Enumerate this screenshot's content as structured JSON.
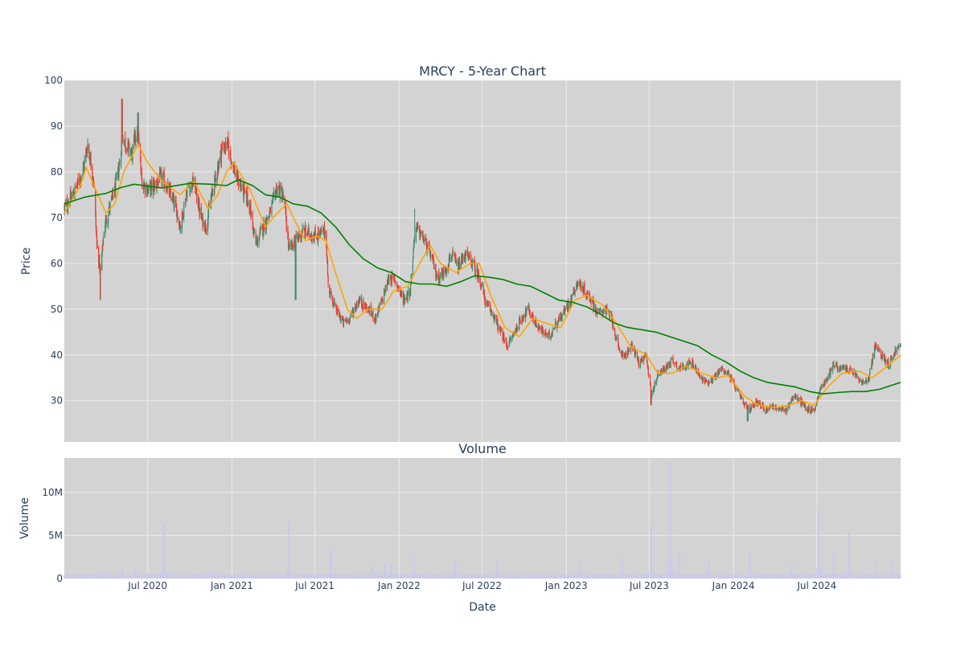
{
  "chart_data": [
    {
      "type": "candlestick",
      "title": "MRCY - 5-Year Chart",
      "ylabel": "Price",
      "xlabel": "",
      "ylim": [
        21,
        100
      ],
      "yticks": [
        30,
        40,
        50,
        60,
        70,
        80,
        90,
        100
      ],
      "xrange": [
        "2020-01-01",
        "2024-12-31"
      ],
      "grid": true,
      "legend": "none",
      "colors": {
        "up": "#3d8b6a",
        "down": "#ef3b2c",
        "ma_short": "#ffa500",
        "ma_long": "#008000",
        "plot_bg": "#d3d3d3",
        "grid": "#ebebeb"
      },
      "close_anchors": [
        [
          "2020-01-01",
          72
        ],
        [
          "2020-01-20",
          75
        ],
        [
          "2020-02-10",
          80
        ],
        [
          "2020-02-21",
          86
        ],
        [
          "2020-03-05",
          78
        ],
        [
          "2020-03-12",
          64
        ],
        [
          "2020-03-20",
          58
        ],
        [
          "2020-03-28",
          68
        ],
        [
          "2020-04-08",
          72
        ],
        [
          "2020-04-20",
          76
        ],
        [
          "2020-05-01",
          82
        ],
        [
          "2020-05-06",
          88
        ],
        [
          "2020-05-15",
          86
        ],
        [
          "2020-05-28",
          84
        ],
        [
          "2020-06-08",
          90
        ],
        [
          "2020-06-18",
          78
        ],
        [
          "2020-07-01",
          76
        ],
        [
          "2020-07-15",
          77
        ],
        [
          "2020-08-01",
          79
        ],
        [
          "2020-08-15",
          76
        ],
        [
          "2020-09-01",
          72
        ],
        [
          "2020-09-10",
          68
        ],
        [
          "2020-09-25",
          76
        ],
        [
          "2020-10-10",
          78
        ],
        [
          "2020-10-25",
          70
        ],
        [
          "2020-11-05",
          68
        ],
        [
          "2020-11-20",
          76
        ],
        [
          "2020-12-10",
          85
        ],
        [
          "2020-12-22",
          86
        ],
        [
          "2021-01-10",
          79
        ],
        [
          "2021-01-25",
          76
        ],
        [
          "2021-02-08",
          73
        ],
        [
          "2021-02-22",
          64
        ],
        [
          "2021-03-10",
          68
        ],
        [
          "2021-03-25",
          71
        ],
        [
          "2021-04-10",
          77
        ],
        [
          "2021-04-25",
          74
        ],
        [
          "2021-05-05",
          63
        ],
        [
          "2021-05-20",
          65
        ],
        [
          "2021-06-05",
          67
        ],
        [
          "2021-07-01",
          66
        ],
        [
          "2021-07-25",
          67
        ],
        [
          "2021-07-30",
          55
        ],
        [
          "2021-08-15",
          50
        ],
        [
          "2021-09-01",
          47
        ],
        [
          "2021-09-15",
          48
        ],
        [
          "2021-10-05",
          52
        ],
        [
          "2021-10-25",
          50
        ],
        [
          "2021-11-10",
          48
        ],
        [
          "2021-11-25",
          52
        ],
        [
          "2021-12-10",
          57
        ],
        [
          "2021-12-25",
          56
        ],
        [
          "2022-01-10",
          52
        ],
        [
          "2022-01-25",
          54
        ],
        [
          "2022-02-05",
          68
        ],
        [
          "2022-02-20",
          66
        ],
        [
          "2022-03-10",
          62
        ],
        [
          "2022-03-25",
          57
        ],
        [
          "2022-04-10",
          58
        ],
        [
          "2022-04-25",
          62
        ],
        [
          "2022-05-10",
          59
        ],
        [
          "2022-05-25",
          62
        ],
        [
          "2022-06-10",
          60
        ],
        [
          "2022-06-25",
          57
        ],
        [
          "2022-07-10",
          51
        ],
        [
          "2022-07-25",
          49
        ],
        [
          "2022-08-10",
          45
        ],
        [
          "2022-08-25",
          42
        ],
        [
          "2022-09-10",
          45
        ],
        [
          "2022-09-25",
          48
        ],
        [
          "2022-10-10",
          50
        ],
        [
          "2022-10-25",
          47
        ],
        [
          "2022-11-10",
          45
        ],
        [
          "2022-11-25",
          44
        ],
        [
          "2022-12-10",
          47
        ],
        [
          "2022-12-25",
          49
        ],
        [
          "2023-01-10",
          52
        ],
        [
          "2023-01-25",
          56
        ],
        [
          "2023-02-10",
          54
        ],
        [
          "2023-02-25",
          52
        ],
        [
          "2023-03-10",
          49
        ],
        [
          "2023-03-25",
          50
        ],
        [
          "2023-04-10",
          48
        ],
        [
          "2023-04-25",
          41
        ],
        [
          "2023-05-10",
          40
        ],
        [
          "2023-05-25",
          42
        ],
        [
          "2023-06-10",
          38
        ],
        [
          "2023-06-25",
          40
        ],
        [
          "2023-07-05",
          31
        ],
        [
          "2023-07-20",
          36
        ],
        [
          "2023-08-05",
          37
        ],
        [
          "2023-08-20",
          39
        ],
        [
          "2023-09-05",
          37
        ],
        [
          "2023-09-20",
          38
        ],
        [
          "2023-10-05",
          38
        ],
        [
          "2023-10-20",
          35
        ],
        [
          "2023-11-05",
          34
        ],
        [
          "2023-11-20",
          35
        ],
        [
          "2023-12-05",
          37
        ],
        [
          "2023-12-20",
          36
        ],
        [
          "2024-01-10",
          32
        ],
        [
          "2024-01-25",
          29
        ],
        [
          "2024-02-05",
          28
        ],
        [
          "2024-02-20",
          30
        ],
        [
          "2024-03-10",
          28
        ],
        [
          "2024-03-25",
          29
        ],
        [
          "2024-04-10",
          28
        ],
        [
          "2024-04-25",
          28
        ],
        [
          "2024-05-10",
          31
        ],
        [
          "2024-05-25",
          30
        ],
        [
          "2024-06-10",
          28
        ],
        [
          "2024-06-25",
          28
        ],
        [
          "2024-07-10",
          33
        ],
        [
          "2024-07-25",
          35
        ],
        [
          "2024-08-05",
          38
        ],
        [
          "2024-08-20",
          37
        ],
        [
          "2024-09-05",
          37
        ],
        [
          "2024-09-20",
          36
        ],
        [
          "2024-10-05",
          34
        ],
        [
          "2024-10-20",
          34
        ],
        [
          "2024-11-05",
          42
        ],
        [
          "2024-11-20",
          40
        ],
        [
          "2024-12-05",
          38
        ],
        [
          "2024-12-20",
          41
        ],
        [
          "2024-12-31",
          42
        ]
      ],
      "ma_short": [
        [
          "2020-01-01",
          71
        ],
        [
          "2020-02-05",
          77
        ],
        [
          "2020-02-18",
          81
        ],
        [
          "2020-03-10",
          76
        ],
        [
          "2020-04-01",
          71
        ],
        [
          "2020-04-20",
          73
        ],
        [
          "2020-05-10",
          80
        ],
        [
          "2020-06-10",
          86
        ],
        [
          "2020-07-01",
          82
        ],
        [
          "2020-08-01",
          78
        ],
        [
          "2020-09-10",
          75
        ],
        [
          "2020-10-10",
          78
        ],
        [
          "2020-11-10",
          72
        ],
        [
          "2020-12-01",
          75
        ],
        [
          "2020-12-20",
          80
        ],
        [
          "2021-01-05",
          82
        ],
        [
          "2021-02-10",
          76
        ],
        [
          "2021-03-15",
          68
        ],
        [
          "2021-04-10",
          71
        ],
        [
          "2021-05-01",
          73
        ],
        [
          "2021-05-20",
          69
        ],
        [
          "2021-06-10",
          65
        ],
        [
          "2021-07-05",
          66
        ],
        [
          "2021-07-25",
          65
        ],
        [
          "2021-08-15",
          58
        ],
        [
          "2021-09-10",
          50
        ],
        [
          "2021-10-01",
          48
        ],
        [
          "2021-10-25",
          50
        ],
        [
          "2021-11-25",
          50
        ],
        [
          "2021-12-20",
          54
        ],
        [
          "2022-01-20",
          55
        ],
        [
          "2022-02-15",
          60
        ],
        [
          "2022-03-10",
          64
        ],
        [
          "2022-04-01",
          60
        ],
        [
          "2022-05-05",
          58
        ],
        [
          "2022-06-05",
          60
        ],
        [
          "2022-06-25",
          60
        ],
        [
          "2022-07-20",
          53
        ],
        [
          "2022-08-20",
          46
        ],
        [
          "2022-09-20",
          44
        ],
        [
          "2022-10-20",
          48
        ],
        [
          "2022-11-15",
          47
        ],
        [
          "2022-12-20",
          46
        ],
        [
          "2023-01-20",
          52
        ],
        [
          "2023-02-15",
          53
        ],
        [
          "2023-03-20",
          51
        ],
        [
          "2023-04-20",
          47
        ],
        [
          "2023-05-20",
          42
        ],
        [
          "2023-06-25",
          40
        ],
        [
          "2023-07-20",
          36
        ],
        [
          "2023-08-20",
          36
        ],
        [
          "2023-09-20",
          37.5
        ],
        [
          "2023-10-25",
          36
        ],
        [
          "2023-11-25",
          35
        ],
        [
          "2023-12-20",
          35.5
        ],
        [
          "2024-01-25",
          31
        ],
        [
          "2024-02-25",
          29
        ],
        [
          "2024-04-01",
          28.5
        ],
        [
          "2024-05-01",
          29
        ],
        [
          "2024-05-30",
          30
        ],
        [
          "2024-06-25",
          29
        ],
        [
          "2024-07-25",
          33
        ],
        [
          "2024-08-25",
          36
        ],
        [
          "2024-10-01",
          36.5
        ],
        [
          "2024-10-30",
          35
        ],
        [
          "2024-11-25",
          37
        ],
        [
          "2024-12-31",
          40
        ]
      ],
      "ma_long": [
        [
          "2020-01-01",
          73
        ],
        [
          "2020-02-15",
          74.5
        ],
        [
          "2020-04-01",
          75.3
        ],
        [
          "2020-05-01",
          76.5
        ],
        [
          "2020-06-01",
          77.3
        ],
        [
          "2020-08-01",
          76.5
        ],
        [
          "2020-10-01",
          77.5
        ],
        [
          "2020-11-15",
          77.3
        ],
        [
          "2020-12-20",
          77
        ],
        [
          "2021-01-15",
          78.3
        ],
        [
          "2021-02-15",
          77
        ],
        [
          "2021-03-15",
          75
        ],
        [
          "2021-04-15",
          74.5
        ],
        [
          "2021-05-15",
          73
        ],
        [
          "2021-06-15",
          72.5
        ],
        [
          "2021-07-15",
          71
        ],
        [
          "2021-08-15",
          68
        ],
        [
          "2021-09-15",
          64
        ],
        [
          "2021-10-15",
          61
        ],
        [
          "2021-11-15",
          59
        ],
        [
          "2021-12-15",
          58
        ],
        [
          "2022-01-15",
          56
        ],
        [
          "2022-02-15",
          55.5
        ],
        [
          "2022-03-15",
          55.5
        ],
        [
          "2022-04-15",
          55
        ],
        [
          "2022-05-15",
          56
        ],
        [
          "2022-06-15",
          57.3
        ],
        [
          "2022-07-15",
          57
        ],
        [
          "2022-08-15",
          56.5
        ],
        [
          "2022-09-15",
          55.5
        ],
        [
          "2022-10-15",
          55
        ],
        [
          "2022-11-15",
          53.5
        ],
        [
          "2022-12-15",
          52
        ],
        [
          "2023-01-15",
          51.5
        ],
        [
          "2023-02-15",
          50.5
        ],
        [
          "2023-03-15",
          49
        ],
        [
          "2023-04-15",
          47
        ],
        [
          "2023-05-15",
          46
        ],
        [
          "2023-06-15",
          45.5
        ],
        [
          "2023-07-15",
          45
        ],
        [
          "2023-08-15",
          44
        ],
        [
          "2023-09-15",
          43
        ],
        [
          "2023-10-15",
          42
        ],
        [
          "2023-11-15",
          40
        ],
        [
          "2023-12-15",
          38.5
        ],
        [
          "2024-01-15",
          36.5
        ],
        [
          "2024-02-15",
          35
        ],
        [
          "2024-03-15",
          34
        ],
        [
          "2024-04-15",
          33.5
        ],
        [
          "2024-05-15",
          33
        ],
        [
          "2024-06-15",
          32
        ],
        [
          "2024-07-15",
          31.5
        ],
        [
          "2024-08-15",
          31.8
        ],
        [
          "2024-09-15",
          32
        ],
        [
          "2024-10-15",
          32
        ],
        [
          "2024-11-15",
          32.5
        ],
        [
          "2024-12-31",
          34
        ]
      ],
      "candle_points": [
        [
          "2020-03-20",
          52
        ],
        [
          "2020-05-06",
          96
        ],
        [
          "2020-06-10",
          93
        ],
        [
          "2021-05-20",
          52
        ],
        [
          "2022-02-05",
          72
        ],
        [
          "2023-07-05",
          29
        ],
        [
          "2024-02-01",
          25.5
        ]
      ]
    },
    {
      "type": "bar",
      "title": "Volume",
      "ylabel": "Volume",
      "xlabel": "Date",
      "ylim": [
        0,
        14000000
      ],
      "yticks": [
        0,
        5000000,
        10000000
      ],
      "ytick_labels": [
        "0",
        "5M",
        "10M"
      ],
      "xticks": [
        "2020-07-01",
        "2021-01-01",
        "2021-07-01",
        "2022-01-01",
        "2022-07-01",
        "2023-01-01",
        "2023-07-01",
        "2024-01-01",
        "2024-07-01"
      ],
      "xtick_labels": [
        "Jul 2020",
        "Jan 2021",
        "Jul 2021",
        "Jan 2022",
        "Jul 2022",
        "Jan 2023",
        "Jul 2023",
        "Jan 2024",
        "Jul 2024"
      ],
      "bar_color": "#c8c8f0",
      "baseline": 450000,
      "spikes": [
        [
          "2020-03-13",
          900000
        ],
        [
          "2020-04-05",
          800000
        ],
        [
          "2020-05-06",
          1100000
        ],
        [
          "2020-06-04",
          1300000
        ],
        [
          "2020-08-05",
          6400000
        ],
        [
          "2020-11-10",
          900000
        ],
        [
          "2021-02-03",
          800000
        ],
        [
          "2021-05-05",
          6500000
        ],
        [
          "2021-08-04",
          3600000
        ],
        [
          "2021-11-03",
          1400000
        ],
        [
          "2021-12-01",
          1800000
        ],
        [
          "2021-12-15",
          1500000
        ],
        [
          "2022-02-05",
          2700000
        ],
        [
          "2022-05-04",
          1900000
        ],
        [
          "2022-08-03",
          2100000
        ],
        [
          "2023-01-31",
          2100000
        ],
        [
          "2023-05-03",
          2400000
        ],
        [
          "2023-07-05",
          6000000
        ],
        [
          "2023-08-16",
          13500000
        ],
        [
          "2023-09-05",
          3000000
        ],
        [
          "2023-11-08",
          2200000
        ],
        [
          "2024-02-06",
          3000000
        ],
        [
          "2024-05-07",
          1700000
        ],
        [
          "2024-07-05",
          8000000
        ],
        [
          "2024-08-06",
          3000000
        ],
        [
          "2024-09-10",
          5500000
        ],
        [
          "2024-11-06",
          1800000
        ],
        [
          "2024-12-12",
          2000000
        ]
      ]
    }
  ]
}
